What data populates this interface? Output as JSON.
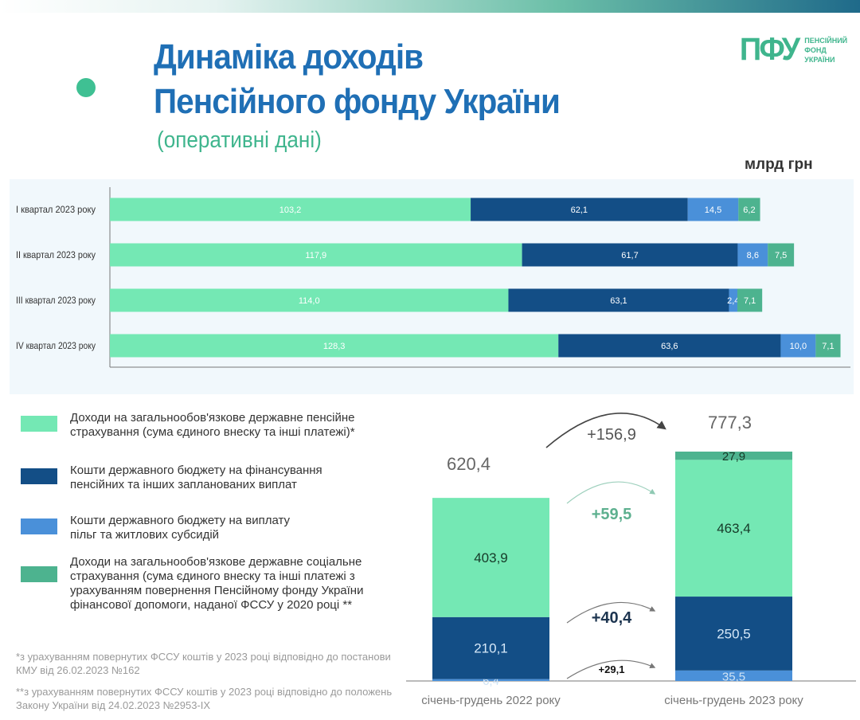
{
  "header": {
    "title_line1": "Динаміка доходів",
    "title_line2": "Пенсійного фонду України",
    "subtitle": "(оперативні дані)",
    "unit": "млрд грн",
    "logo": {
      "mark": "ПФУ",
      "line1": "ПЕНСІЙНИЙ",
      "line2": "ФОНД",
      "line3": "УКРАЇНИ"
    }
  },
  "colors": {
    "pension_insurance": "#74e8b4",
    "state_budget_payments": "#134e86",
    "state_budget_subsidies": "#4a90d9",
    "social_insurance": "#4db38f",
    "title": "#1f6fb5",
    "accent": "#3fb58d"
  },
  "legend": [
    {
      "label": "Доходи на загальнообов'язкове державне пенсійне страхування (сума єдиного внеску та інші платежі)*"
    },
    {
      "label": "Кошти державного бюджету на фінансування пенсійних та інших запланованих виплат"
    },
    {
      "label": "Кошти державного бюджету на виплату пільг та житлових субсидій"
    },
    {
      "label": "Доходи на загальнообов'язкове державне соціальне страхування (сума єдиного внеску та інші платежі з урахуванням повернення Пенсійному фонду України фінансової допомоги, наданої ФССУ у 2020 році **"
    }
  ],
  "notes": [
    "*з урахуванням повернутих ФССУ коштів у 2023 році відповідно до постанови КМУ від 26.02.2023 №162",
    "**з урахуванням повернутих ФССУ коштів у 2023 році відповідно до положень Закону України від 24.02.2023 №2953-IX"
  ],
  "chart_data": [
    {
      "type": "bar",
      "orientation": "horizontal",
      "stacked": true,
      "categories": [
        "I квартал 2023 року",
        "II квартал 2023 року",
        "III квартал 2023 року",
        "IV квартал 2023 року"
      ],
      "series": [
        {
          "color": "#74e8b4",
          "values": [
            103.2,
            117.9,
            114.0,
            128.3
          ],
          "labels": [
            "103,2",
            "117,9",
            "114,0",
            "128,3"
          ]
        },
        {
          "color": "#134e86",
          "values": [
            62.1,
            61.7,
            63.1,
            63.6
          ],
          "labels": [
            "62,1",
            "61,7",
            "63,1",
            "63,6"
          ]
        },
        {
          "color": "#4a90d9",
          "values": [
            14.5,
            8.6,
            2.4,
            10.0
          ],
          "labels": [
            "14,5",
            "8,6",
            "2,4",
            "10,0"
          ]
        },
        {
          "color": "#4db38f",
          "values": [
            6.2,
            7.5,
            7.1,
            7.1
          ],
          "labels": [
            "6,2",
            "7,5",
            "7,1",
            "7,1"
          ]
        }
      ],
      "grid": false
    },
    {
      "type": "bar",
      "orientation": "vertical",
      "stacked": true,
      "categories": [
        "січень-грудень 2022 року",
        "січень-грудень 2023 року"
      ],
      "totals": [
        620.4,
        777.3
      ],
      "total_labels": [
        "620,4",
        "777,3"
      ],
      "series": [
        {
          "color": "#4a90d9",
          "values": [
            6.4,
            35.5
          ],
          "labels": [
            "6,4",
            "35,5"
          ],
          "label_color": "#cfe3f5"
        },
        {
          "color": "#134e86",
          "values": [
            210.1,
            250.5
          ],
          "labels": [
            "210,1",
            "250,5"
          ],
          "label_color": "#d6e8f8"
        },
        {
          "color": "#74e8b4",
          "values": [
            403.9,
            463.4
          ],
          "labels": [
            "403,9",
            "463,4"
          ],
          "label_color": "#163a28"
        },
        {
          "color": "#4db38f",
          "values": [
            0,
            27.9
          ],
          "labels": [
            "",
            "27,9"
          ],
          "label_color": "#163a28"
        }
      ],
      "changes": [
        {
          "label": "+156,9",
          "color": "#555555",
          "target": "total"
        },
        {
          "label": "+59,5",
          "color": "#5db08f",
          "target": "pension_insurance"
        },
        {
          "label": "+40,4",
          "color": "#1d3550",
          "target": "state_budget_payments"
        },
        {
          "label": "+29,1",
          "color": "#111111",
          "target": "state_budget_subsidies"
        }
      ]
    }
  ]
}
